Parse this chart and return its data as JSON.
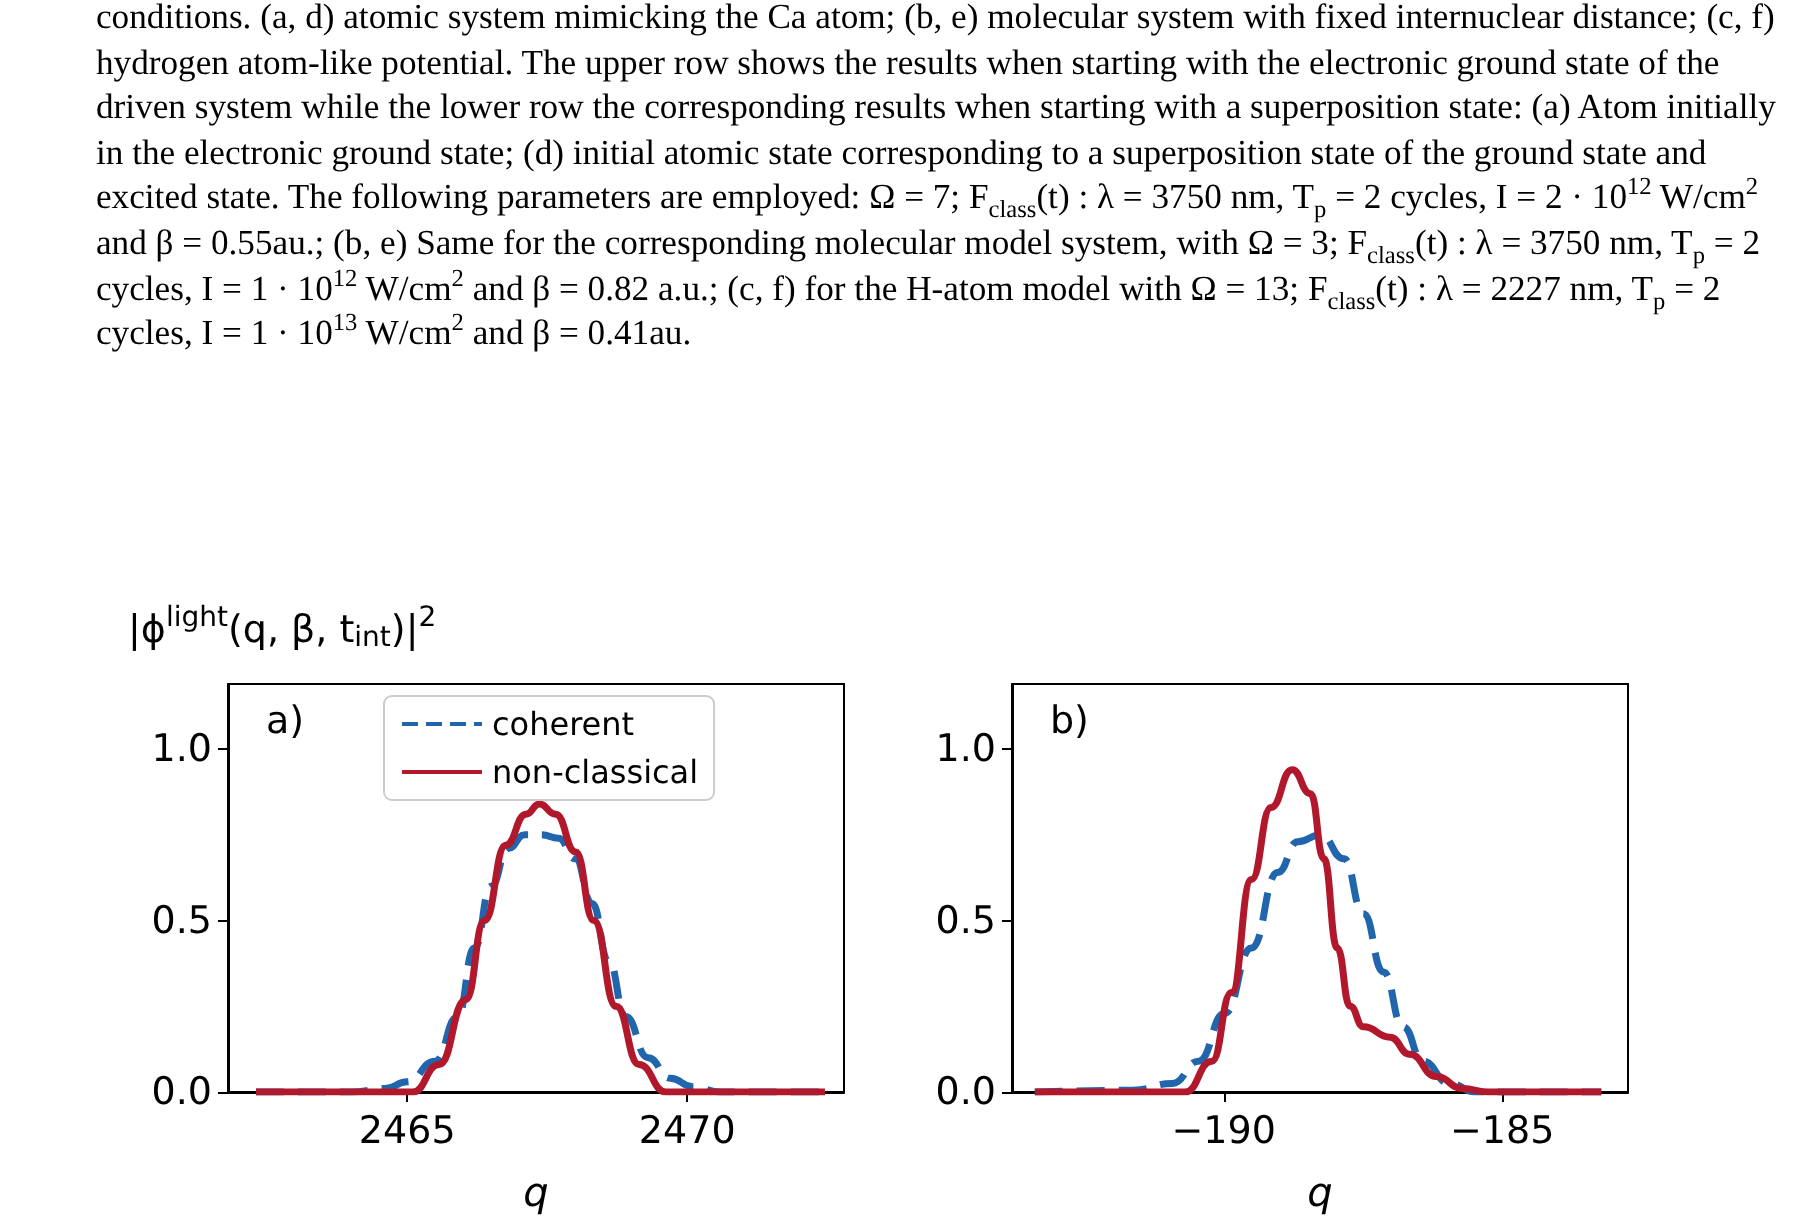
{
  "chart_data": [
    {
      "type": "other",
      "annotations": [
        "conditions. (a, d) atomic system mimicking the Ca atom; (b, e) molecular system with fixed internuclear distance; (c, f) hydrogen atom-like potential. The upper row shows the results when starting with the electronic ground state of the driven system while the lower row the corresponding results when starting with a superposition state: (a) Atom initially in the electronic ground state; (d) initial atomic state corresponding to a superposition state of the ground state and excited state. The following parameters are employed: Ω = 7; F$_{class}$(t) :  λ = 3750 nm, T$_{p}$ = 2 cycles, I = 2 · 10$^{12}$ W/cm$^{2}$ and β = 0.55au.; (b, e) Same for the corresponding molecular model system, with Ω = 3; F$_{class}$(t) :  λ = 3750 nm, T$_{p}$ = 2 cycles, I = 1 · 10$^{12}$ W/cm$^{2}$ and β = 0.82 a.u.; (c, f) for the H-atom model with Ω = 13; F$_{class}$(t) :  λ = 2227 nm, T$_{p}$ = 2 cycles, I = 1 · 10$^{13}$ W/cm$^{2}$ and β = 0.41au."
      ]
    },
    {
      "type": "line",
      "title": "a)",
      "ylabel": "|ϕ$^{light}$(q, β, t$_{int}$)|$^{2}$",
      "xlabel": "q",
      "xlim": [
        2461.8,
        2472.8
      ],
      "xticks": [
        2465,
        2470
      ],
      "ylim": [
        0,
        1.19
      ],
      "yticks": [
        {
          "value": 0,
          "label": "0.0"
        },
        {
          "value": 0.5,
          "label": "0.5"
        },
        {
          "value": 1,
          "label": "1.0"
        }
      ],
      "grid": false,
      "legend": "top",
      "marker": "none",
      "series": [
        {
          "name": "coherent",
          "color": "#2166ac",
          "line_style": "dashed",
          "x": [
            2462.3,
            2464,
            2464.6,
            2465,
            2465.5,
            2465.9,
            2466.2,
            2466.5,
            2466.8,
            2467.1,
            2467.4,
            2467.7,
            2468,
            2468.3,
            2468.6,
            2468.9,
            2469.3,
            2469.7,
            2470.1,
            2470.6,
            2472.46
          ],
          "values": [
            0,
            0,
            0.01,
            0.03,
            0.09,
            0.22,
            0.42,
            0.6,
            0.71,
            0.75,
            0.75,
            0.74,
            0.68,
            0.55,
            0.38,
            0.22,
            0.1,
            0.04,
            0.015,
            0,
            0
          ]
        },
        {
          "name": "non-classical",
          "color": "#b2182b",
          "line_style": "solid",
          "x": [
            2462.3,
            2465.1,
            2465.57,
            2466.05,
            2466.38,
            2466.76,
            2467.12,
            2467.36,
            2467.65,
            2468.01,
            2468.33,
            2468.73,
            2469.14,
            2469.62,
            2472.46
          ],
          "values": [
            0,
            0,
            0.08,
            0.27,
            0.5,
            0.72,
            0.81,
            0.84,
            0.81,
            0.7,
            0.5,
            0.25,
            0.08,
            0,
            0
          ]
        }
      ]
    },
    {
      "type": "line",
      "title": "b)",
      "xlabel": "q",
      "xlim": [
        -193.8,
        -182.74
      ],
      "xticks": [
        {
          "value": -190,
          "label": "−190"
        },
        {
          "value": -185,
          "label": "−185"
        }
      ],
      "ylim": [
        0,
        1.19
      ],
      "yticks": [
        {
          "value": 0,
          "label": "0.0"
        },
        {
          "value": 0.5,
          "label": "0.5"
        },
        {
          "value": 1,
          "label": "1.0"
        }
      ],
      "grid": false,
      "marker": "none",
      "series": [
        {
          "color": "#2166ac",
          "line_style": "dashed",
          "x": [
            -193.39,
            -191.63,
            -190.92,
            -190.45,
            -189.98,
            -189.5,
            -189.03,
            -188.67,
            -188.26,
            -187.84,
            -187.49,
            -187.13,
            -186.78,
            -186.42,
            -185.95,
            -185.47,
            -183.22
          ],
          "values": [
            0,
            0.005,
            0.025,
            0.09,
            0.23,
            0.42,
            0.64,
            0.73,
            0.75,
            0.68,
            0.52,
            0.35,
            0.19,
            0.09,
            0.025,
            0,
            0
          ]
        },
        {
          "color": "#b2182b",
          "line_style": "solid",
          "x": [
            -193.39,
            -190.69,
            -190.21,
            -189.86,
            -189.5,
            -189.15,
            -188.77,
            -188.44,
            -188.2,
            -187.96,
            -187.73,
            -187.49,
            -187.01,
            -186.66,
            -186.18,
            -185.71,
            -185.24,
            -183.22
          ],
          "values": [
            0,
            0,
            0.09,
            0.29,
            0.62,
            0.83,
            0.94,
            0.87,
            0.68,
            0.42,
            0.25,
            0.19,
            0.16,
            0.11,
            0.045,
            0.01,
            0,
            0
          ]
        }
      ]
    }
  ]
}
